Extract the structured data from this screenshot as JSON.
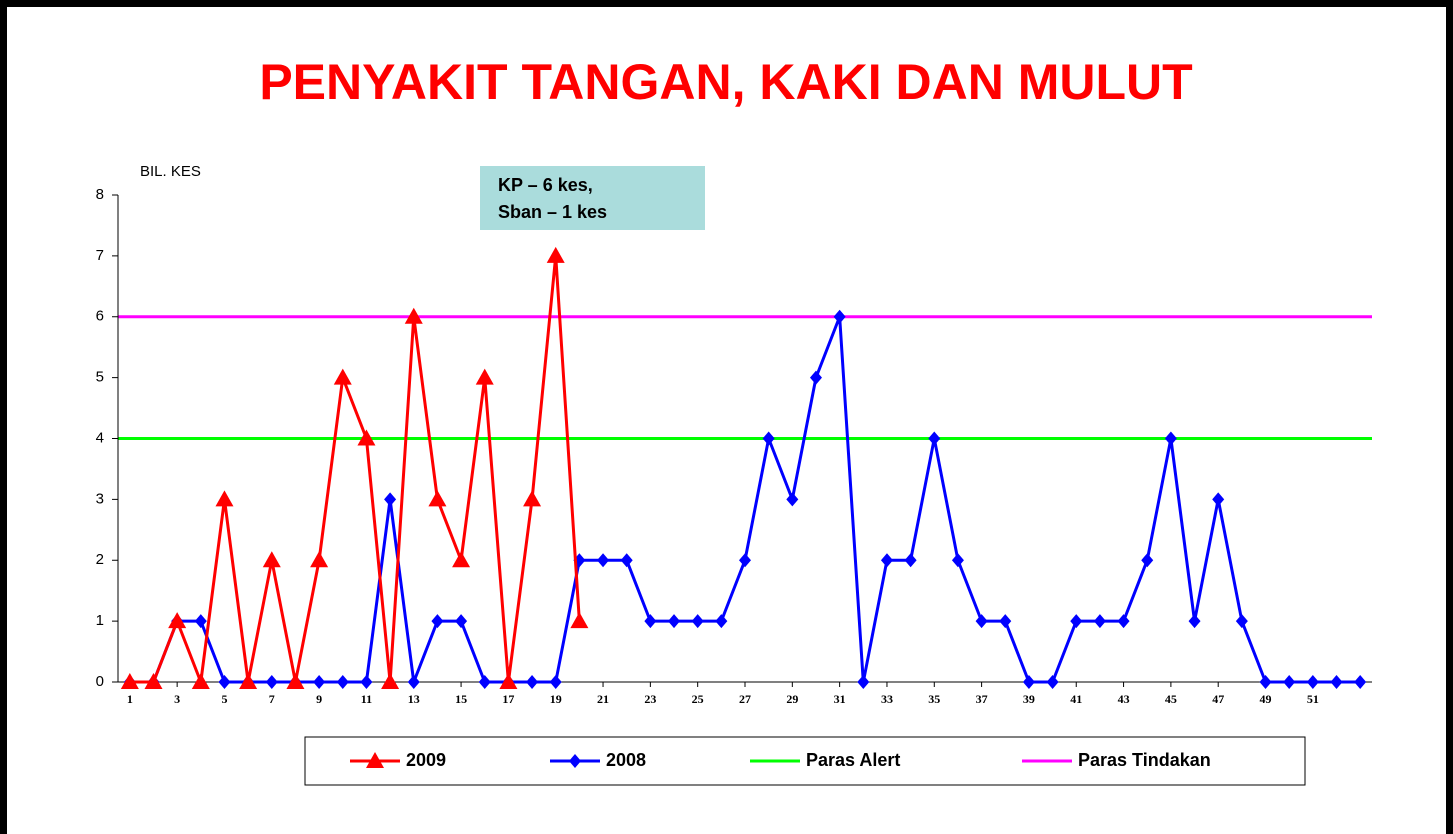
{
  "chart_data": {
    "type": "line",
    "title": "PENYAKIT TANGAN, KAKI DAN MULUT",
    "y_label": "BIL. KES",
    "annotation": [
      "KP – 6 kes,",
      "Sban – 1 kes"
    ],
    "x": [
      1,
      2,
      3,
      4,
      5,
      6,
      7,
      8,
      9,
      10,
      11,
      12,
      13,
      14,
      15,
      16,
      17,
      18,
      19,
      20,
      21,
      22,
      23,
      24,
      25,
      26,
      27,
      28,
      29,
      30,
      31,
      32,
      33,
      34,
      35,
      36,
      37,
      38,
      39,
      40,
      41,
      42,
      43,
      44,
      45,
      46,
      47,
      48,
      49,
      50,
      51,
      52,
      53
    ],
    "xlim": [
      0.5,
      53.5
    ],
    "xticks": [
      1,
      3,
      5,
      7,
      9,
      11,
      13,
      15,
      17,
      19,
      21,
      23,
      25,
      27,
      29,
      31,
      33,
      35,
      37,
      39,
      41,
      43,
      45,
      47,
      49,
      51
    ],
    "ylim": [
      0,
      8
    ],
    "yticks": [
      0,
      1,
      2,
      3,
      4,
      5,
      6,
      7,
      8
    ],
    "series": [
      {
        "name": "2009",
        "color": "#ff0000",
        "marker": "triangle",
        "values": [
          0,
          0,
          1,
          0,
          3,
          0,
          2,
          0,
          2,
          5,
          4,
          0,
          6,
          3,
          2,
          5,
          0,
          3,
          7,
          1,
          null,
          null,
          null,
          null,
          null,
          null,
          null,
          null,
          null,
          null,
          null,
          null,
          null,
          null,
          null,
          null,
          null,
          null,
          null,
          null,
          null,
          null,
          null,
          null,
          null,
          null,
          null,
          null,
          null,
          null,
          null,
          null,
          null
        ]
      },
      {
        "name": "2008",
        "color": "#0000ff",
        "marker": "diamond",
        "values": [
          0,
          0,
          1,
          1,
          0,
          0,
          0,
          0,
          0,
          0,
          0,
          3,
          0,
          1,
          1,
          0,
          0,
          0,
          0,
          2,
          2,
          2,
          1,
          1,
          1,
          1,
          2,
          4,
          3,
          5,
          6,
          0,
          2,
          2,
          4,
          2,
          1,
          1,
          0,
          0,
          1,
          1,
          1,
          2,
          4,
          1,
          3,
          1,
          0,
          0,
          0,
          0,
          0
        ]
      }
    ],
    "reference_lines": [
      {
        "name": "Paras Alert",
        "color": "#00ff00",
        "value": 4
      },
      {
        "name": "Paras Tindakan",
        "color": "#ff00ff",
        "value": 6
      }
    ]
  }
}
